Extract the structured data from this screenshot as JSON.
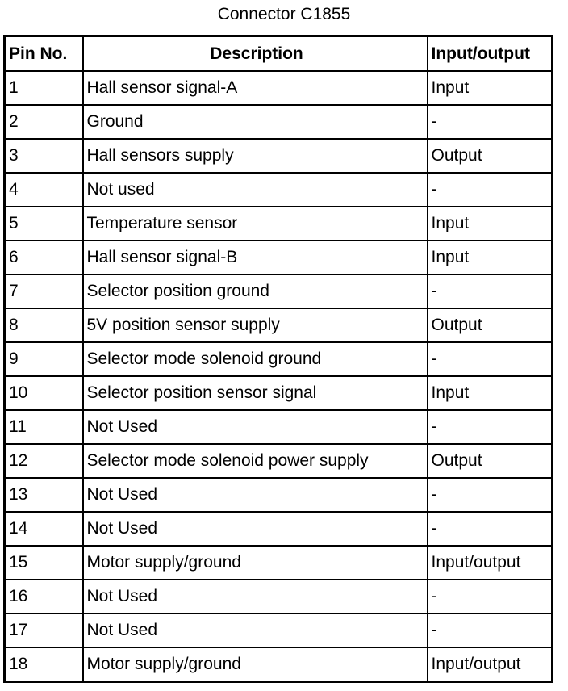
{
  "title": "Connector C1855",
  "headers": [
    "Pin No.",
    "Description",
    "Input/output"
  ],
  "rows": [
    [
      "1",
      "Hall sensor signal-A",
      "Input"
    ],
    [
      "2",
      "Ground",
      "-"
    ],
    [
      "3",
      "Hall sensors supply",
      "Output"
    ],
    [
      "4",
      "Not used",
      "-"
    ],
    [
      "5",
      "Temperature sensor",
      "Input"
    ],
    [
      "6",
      "Hall sensor signal-B",
      "Input"
    ],
    [
      "7",
      "Selector position ground",
      "-"
    ],
    [
      "8",
      "5V position sensor supply",
      "Output"
    ],
    [
      "9",
      "Selector mode solenoid ground",
      "-"
    ],
    [
      "10",
      "Selector position sensor signal",
      "Input"
    ],
    [
      "11",
      "Not Used",
      "-"
    ],
    [
      "12",
      "Selector mode solenoid power supply",
      "Output"
    ],
    [
      "13",
      "Not Used",
      "-"
    ],
    [
      "14",
      "Not Used",
      "-"
    ],
    [
      "15",
      "Motor supply/ground",
      "Input/output"
    ],
    [
      "16",
      "Not Used",
      "-"
    ],
    [
      "17",
      "Not Used",
      "-"
    ],
    [
      "18",
      "Motor supply/ground",
      "Input/output"
    ]
  ]
}
